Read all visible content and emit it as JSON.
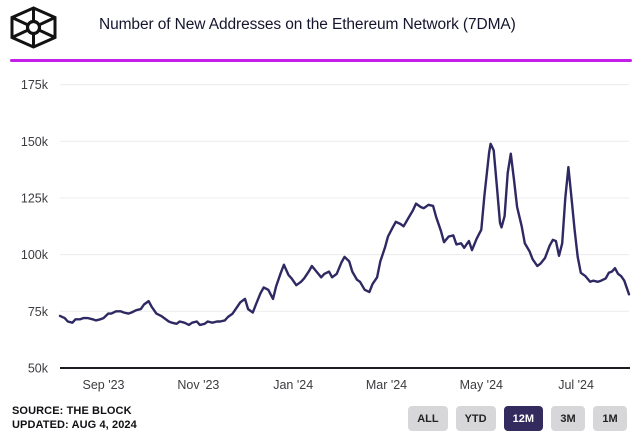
{
  "header": {
    "title": "Number of New Addresses on the Ethereum Network (7DMA)",
    "logo_name": "the-block-logo"
  },
  "footer": {
    "source_line": "SOURCE: THE BLOCK",
    "updated_line": "UPDATED: AUG 4, 2024"
  },
  "range_buttons": [
    {
      "label": "ALL",
      "selected": false
    },
    {
      "label": "YTD",
      "selected": false
    },
    {
      "label": "12M",
      "selected": true
    },
    {
      "label": "3M",
      "selected": false
    },
    {
      "label": "1M",
      "selected": false
    }
  ],
  "colors": {
    "accent_rule": "#c41fe8",
    "series_line": "#2e2963",
    "selected_button_bg": "#332b5e"
  },
  "chart_data": {
    "type": "line",
    "title": "Number of New Addresses on the Ethereum Network (7DMA)",
    "series_name": "New Addresses (7DMA)",
    "unit": "thousands of addresses",
    "grid": "horizontal-only",
    "legend": "none",
    "ylim": [
      50,
      183
    ],
    "y_axis": [
      50,
      175
    ],
    "y_ticks": [
      {
        "v": 50,
        "label": "50k"
      },
      {
        "v": 75,
        "label": "75k"
      },
      {
        "v": 100,
        "label": "100k"
      },
      {
        "v": 125,
        "label": "125k"
      },
      {
        "v": 150,
        "label": "150k"
      },
      {
        "v": 175,
        "label": "175k"
      }
    ],
    "x_domain": [
      "2023-08-04",
      "2024-08-04"
    ],
    "x_ticks": [
      {
        "date": "2023-09-01",
        "label": "Sep '23"
      },
      {
        "date": "2023-11-01",
        "label": "Nov '23"
      },
      {
        "date": "2024-01-01",
        "label": "Jan '24"
      },
      {
        "date": "2024-03-01",
        "label": "Mar '24"
      },
      {
        "date": "2024-05-01",
        "label": "May '24"
      },
      {
        "date": "2024-07-01",
        "label": "Jul '24"
      }
    ],
    "points": [
      [
        "2023-08-04",
        73
      ],
      [
        "2023-08-07",
        72
      ],
      [
        "2023-08-09",
        70.5
      ],
      [
        "2023-08-12",
        70
      ],
      [
        "2023-08-14",
        71.5
      ],
      [
        "2023-08-17",
        71.5
      ],
      [
        "2023-08-19",
        72
      ],
      [
        "2023-08-22",
        72
      ],
      [
        "2023-08-25",
        71.5
      ],
      [
        "2023-08-27",
        71
      ],
      [
        "2023-08-30",
        71.5
      ],
      [
        "2023-09-01",
        72
      ],
      [
        "2023-09-04",
        74
      ],
      [
        "2023-09-06",
        74
      ],
      [
        "2023-09-09",
        75
      ],
      [
        "2023-09-12",
        75
      ],
      [
        "2023-09-14",
        74.5
      ],
      [
        "2023-09-17",
        74
      ],
      [
        "2023-09-19",
        74.5
      ],
      [
        "2023-09-22",
        75.5
      ],
      [
        "2023-09-25",
        76
      ],
      [
        "2023-09-27",
        78
      ],
      [
        "2023-09-30",
        79.5
      ],
      [
        "2023-10-02",
        77
      ],
      [
        "2023-10-05",
        74
      ],
      [
        "2023-10-08",
        73
      ],
      [
        "2023-10-10",
        72
      ],
      [
        "2023-10-13",
        70.5
      ],
      [
        "2023-10-15",
        70
      ],
      [
        "2023-10-18",
        69.5
      ],
      [
        "2023-10-20",
        70.5
      ],
      [
        "2023-10-23",
        70
      ],
      [
        "2023-10-26",
        69
      ],
      [
        "2023-10-28",
        70
      ],
      [
        "2023-10-31",
        70.5
      ],
      [
        "2023-11-02",
        69
      ],
      [
        "2023-11-05",
        69.5
      ],
      [
        "2023-11-07",
        70.5
      ],
      [
        "2023-11-10",
        70
      ],
      [
        "2023-11-13",
        70.5
      ],
      [
        "2023-11-15",
        70.5
      ],
      [
        "2023-11-18",
        71
      ],
      [
        "2023-11-20",
        72.5
      ],
      [
        "2023-11-23",
        74
      ],
      [
        "2023-11-25",
        76
      ],
      [
        "2023-11-28",
        79
      ],
      [
        "2023-12-01",
        80.5
      ],
      [
        "2023-12-03",
        76
      ],
      [
        "2023-12-06",
        74.5
      ],
      [
        "2023-12-08",
        78
      ],
      [
        "2023-12-11",
        83
      ],
      [
        "2023-12-13",
        85.5
      ],
      [
        "2023-12-16",
        84.5
      ],
      [
        "2023-12-19",
        80.5
      ],
      [
        "2023-12-21",
        86
      ],
      [
        "2023-12-24",
        92
      ],
      [
        "2023-12-26",
        95.5
      ],
      [
        "2023-12-29",
        91
      ],
      [
        "2023-12-31",
        89.5
      ],
      [
        "2024-01-03",
        86.5
      ],
      [
        "2024-01-06",
        88
      ],
      [
        "2024-01-08",
        89.5
      ],
      [
        "2024-01-11",
        92.5
      ],
      [
        "2024-01-13",
        95
      ],
      [
        "2024-01-16",
        92.5
      ],
      [
        "2024-01-19",
        90
      ],
      [
        "2024-01-21",
        91.5
      ],
      [
        "2024-01-24",
        92.5
      ],
      [
        "2024-01-26",
        90
      ],
      [
        "2024-01-29",
        91.5
      ],
      [
        "2024-02-01",
        96.5
      ],
      [
        "2024-02-03",
        99
      ],
      [
        "2024-02-06",
        97
      ],
      [
        "2024-02-08",
        92.5
      ],
      [
        "2024-02-11",
        89
      ],
      [
        "2024-02-13",
        88
      ],
      [
        "2024-02-16",
        84.5
      ],
      [
        "2024-02-19",
        83.5
      ],
      [
        "2024-02-21",
        87
      ],
      [
        "2024-02-24",
        90
      ],
      [
        "2024-02-26",
        97
      ],
      [
        "2024-02-29",
        103
      ],
      [
        "2024-03-02",
        108
      ],
      [
        "2024-03-05",
        112
      ],
      [
        "2024-03-07",
        114.5
      ],
      [
        "2024-03-10",
        113.5
      ],
      [
        "2024-03-12",
        112.5
      ],
      [
        "2024-03-15",
        116
      ],
      [
        "2024-03-18",
        119.5
      ],
      [
        "2024-03-20",
        122.5
      ],
      [
        "2024-03-23",
        121
      ],
      [
        "2024-03-25",
        120.5
      ],
      [
        "2024-03-28",
        122
      ],
      [
        "2024-03-31",
        121.5
      ],
      [
        "2024-04-02",
        116.5
      ],
      [
        "2024-04-05",
        110.5
      ],
      [
        "2024-04-07",
        105.5
      ],
      [
        "2024-04-10",
        108
      ],
      [
        "2024-04-13",
        108.5
      ],
      [
        "2024-04-15",
        104.5
      ],
      [
        "2024-04-18",
        105
      ],
      [
        "2024-04-20",
        103
      ],
      [
        "2024-04-23",
        106
      ],
      [
        "2024-04-25",
        102
      ],
      [
        "2024-04-28",
        107
      ],
      [
        "2024-05-01",
        111
      ],
      [
        "2024-05-03",
        126
      ],
      [
        "2024-05-06",
        145
      ],
      [
        "2024-05-07",
        148.9
      ],
      [
        "2024-05-09",
        146
      ],
      [
        "2024-05-11",
        130
      ],
      [
        "2024-05-13",
        114
      ],
      [
        "2024-05-14",
        112
      ],
      [
        "2024-05-16",
        117
      ],
      [
        "2024-05-18",
        136
      ],
      [
        "2024-05-20",
        144.5
      ],
      [
        "2024-05-22",
        133
      ],
      [
        "2024-05-24",
        121
      ],
      [
        "2024-05-27",
        112.5
      ],
      [
        "2024-05-29",
        105
      ],
      [
        "2024-06-01",
        101.5
      ],
      [
        "2024-06-03",
        98
      ],
      [
        "2024-06-06",
        95
      ],
      [
        "2024-06-08",
        96
      ],
      [
        "2024-06-11",
        98.5
      ],
      [
        "2024-06-14",
        104
      ],
      [
        "2024-06-16",
        106.5
      ],
      [
        "2024-06-18",
        106
      ],
      [
        "2024-06-20",
        99.5
      ],
      [
        "2024-06-22",
        105
      ],
      [
        "2024-06-24",
        125
      ],
      [
        "2024-06-26",
        138.6
      ],
      [
        "2024-06-28",
        125
      ],
      [
        "2024-06-30",
        111
      ],
      [
        "2024-07-02",
        99
      ],
      [
        "2024-07-04",
        92
      ],
      [
        "2024-07-07",
        90.5
      ],
      [
        "2024-07-10",
        88
      ],
      [
        "2024-07-12",
        88.5
      ],
      [
        "2024-07-15",
        88
      ],
      [
        "2024-07-17",
        88.5
      ],
      [
        "2024-07-20",
        89.5
      ],
      [
        "2024-07-22",
        92
      ],
      [
        "2024-07-24",
        92.5
      ],
      [
        "2024-07-26",
        94
      ],
      [
        "2024-07-28",
        91.5
      ],
      [
        "2024-07-30",
        90.5
      ],
      [
        "2024-08-01",
        88.5
      ],
      [
        "2024-08-04",
        82.5
      ]
    ]
  }
}
